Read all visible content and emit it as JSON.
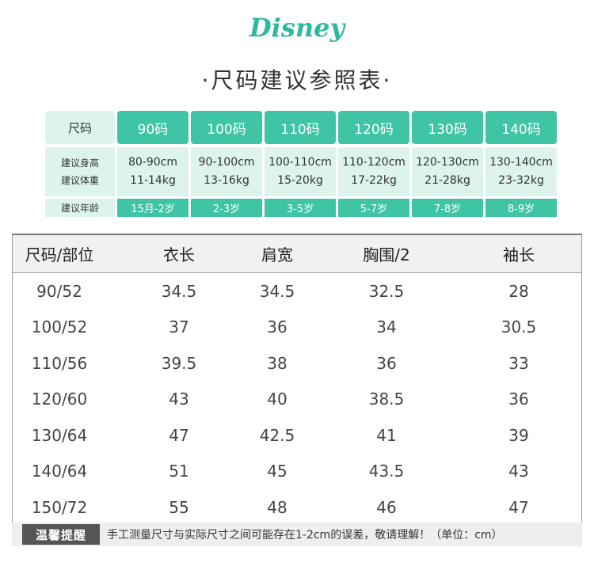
{
  "brand": "Disney",
  "title": "·尺码建议参照表·",
  "guide": {
    "header": [
      "尺码",
      "90码",
      "100码",
      "110码",
      "120码",
      "130码",
      "140码"
    ],
    "body_labels": [
      "建议身高",
      "建议体重"
    ],
    "body": [
      [
        "80-90cm",
        "11-14kg"
      ],
      [
        "90-100cm",
        "13-16kg"
      ],
      [
        "100-110cm",
        "15-20kg"
      ],
      [
        "110-120cm",
        "17-22kg"
      ],
      [
        "120-130cm",
        "21-28kg"
      ],
      [
        "130-140cm",
        "23-32kg"
      ]
    ],
    "age_label": "建议年龄",
    "ages": [
      "15月-2岁",
      "2-3岁",
      "3-5岁",
      "5-7岁",
      "7-8岁",
      "8-9岁"
    ]
  },
  "table": {
    "header": [
      "尺码/部位",
      "衣长",
      "肩宽",
      "胸围/2",
      "袖长"
    ],
    "rows": [
      [
        "90/52",
        "34.5",
        "34.5",
        "32.5",
        "28"
      ],
      [
        "100/52",
        "37",
        "36",
        "34",
        "30.5"
      ],
      [
        "110/56",
        "39.5",
        "38",
        "36",
        "33"
      ],
      [
        "120/60",
        "43",
        "40",
        "38.5",
        "36"
      ],
      [
        "130/64",
        "47",
        "42.5",
        "41",
        "39"
      ],
      [
        "140/64",
        "51",
        "45",
        "43.5",
        "43"
      ],
      [
        "150/72",
        "55",
        "48",
        "46",
        "47"
      ]
    ]
  },
  "notice": {
    "tag": "温馨提醒",
    "text": "手工测量尺寸与实际尺寸之间可能存在1-2cm的误差，敬请理解！（单位：cm）"
  }
}
